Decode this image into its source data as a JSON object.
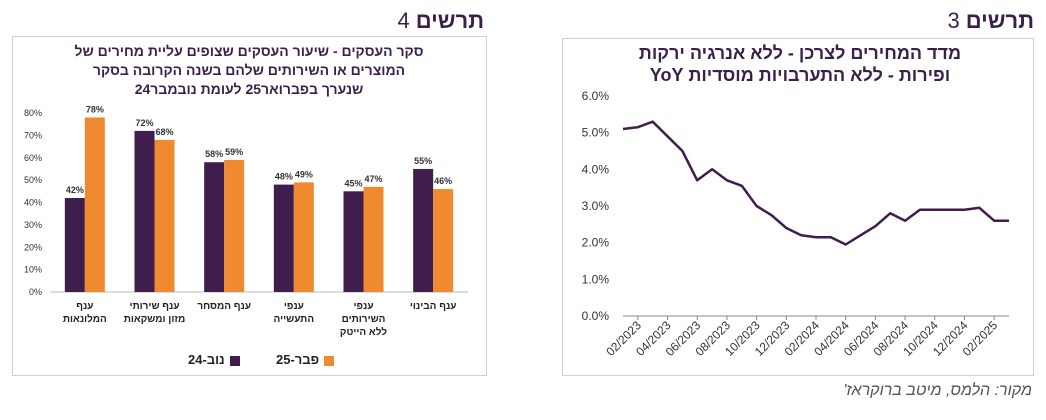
{
  "headings": {
    "left": {
      "word": "תרשים",
      "num": "4"
    },
    "right": {
      "word": "תרשים",
      "num": "3"
    }
  },
  "source": "מקור: הלמס, מיטב ברוקראז'",
  "colors": {
    "purple": "#3f1d4c",
    "orange": "#f08a30",
    "title": "#3a1f4a"
  },
  "chart_data": [
    {
      "type": "bar",
      "title_lines": [
        "סקר העסקים - שיעור העסקים שצופים עליית מחירים של",
        "המוצרים או השירותים שלהם בשנה הקרובה בסקר",
        "שנערך בפברואר25 לעומת נובמבר24"
      ],
      "categories": [
        [
          "ענף",
          "המלונאות"
        ],
        [
          "ענף שירותי",
          "מזון ומשקאות"
        ],
        [
          "ענף המסחר"
        ],
        [
          "ענפי",
          "התעשייה"
        ],
        [
          "ענפי",
          "השירותים",
          "ללא הייטק"
        ],
        [
          "ענף הבינוי"
        ]
      ],
      "series": [
        {
          "name": "נוב-24",
          "values": [
            42,
            72,
            58,
            48,
            45,
            55
          ],
          "labels": [
            "42%",
            "72%",
            "58%",
            "48%",
            "45%",
            "55%"
          ]
        },
        {
          "name": "פבר-25",
          "values": [
            78,
            68,
            59,
            49,
            47,
            46
          ],
          "labels": [
            "78%",
            "68%",
            "59%",
            "49%",
            "47%",
            "46%"
          ]
        }
      ],
      "ylim": [
        0,
        80
      ],
      "yticks": [
        "0%",
        "10%",
        "20%",
        "30%",
        "40%",
        "50%",
        "60%",
        "70%",
        "80%"
      ],
      "legend": "bottom",
      "grid": false
    },
    {
      "type": "line",
      "title_lines": [
        "מדד המחירים לצרכן - ללא אנרגיה ירקות",
        "ופירות - ללא התערבויות מוסדיות YoY"
      ],
      "x": [
        "01/2023",
        "02/2023",
        "03/2023",
        "04/2023",
        "05/2023",
        "06/2023",
        "07/2023",
        "08/2023",
        "09/2023",
        "10/2023",
        "11/2023",
        "12/2023",
        "01/2024",
        "02/2024",
        "03/2024",
        "04/2024",
        "05/2024",
        "06/2024",
        "07/2024",
        "08/2024",
        "09/2024",
        "10/2024",
        "11/2024",
        "12/2024",
        "01/2025",
        "02/2025",
        "03/2025"
      ],
      "y": [
        5.1,
        5.15,
        5.3,
        4.9,
        4.5,
        3.7,
        4.0,
        3.7,
        3.55,
        3.0,
        2.75,
        2.4,
        2.2,
        2.15,
        2.15,
        1.95,
        2.2,
        2.45,
        2.8,
        2.6,
        2.9,
        2.9,
        2.9,
        2.9,
        2.95,
        2.6,
        2.6
      ],
      "xticks": [
        "02/2023",
        "04/2023",
        "06/2023",
        "08/2023",
        "10/2023",
        "12/2023",
        "02/2024",
        "04/2024",
        "06/2024",
        "08/2024",
        "10/2024",
        "12/2024",
        "02/2025"
      ],
      "yticks": [
        "0.0%",
        "1.0%",
        "2.0%",
        "3.0%",
        "4.0%",
        "5.0%",
        "6.0%"
      ],
      "ylim": [
        0,
        6
      ],
      "grid": false
    }
  ]
}
